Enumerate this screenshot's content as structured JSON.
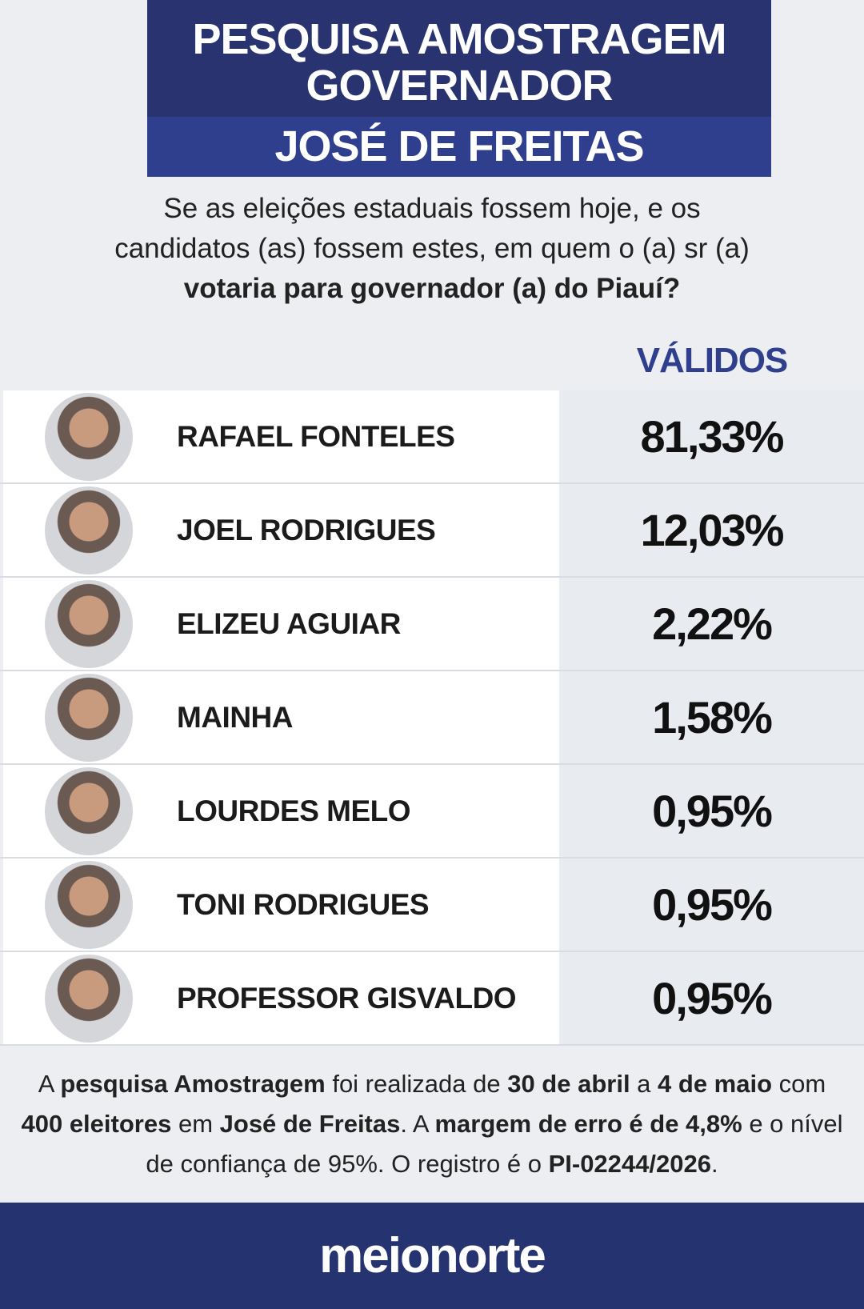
{
  "header": {
    "title_lines": [
      "PESQUISA AMOSTRAGEM",
      "GOVERNADOR"
    ],
    "subtitle": "JOSÉ DE FREITAS"
  },
  "question": [
    {
      "text": "Se as eleições estaduais fossem hoje, e os candidatos (as) fossem estes, em quem o (a) sr (a) ",
      "bold": false
    },
    {
      "text": "votaria para governador (a) do Piauí?",
      "bold": true
    }
  ],
  "table": {
    "value_header": "VÁLIDOS",
    "rows": [
      {
        "name": "RAFAEL FONTELES",
        "value": "81,33%"
      },
      {
        "name": "JOEL RODRIGUES",
        "value": "12,03%"
      },
      {
        "name": "ELIZEU AGUIAR",
        "value": "2,22%"
      },
      {
        "name": "MAINHA",
        "value": "1,58%"
      },
      {
        "name": "LOURDES MELO",
        "value": "0,95%"
      },
      {
        "name": "TONI RODRIGUES",
        "value": "0,95%"
      },
      {
        "name": "PROFESSOR GISVALDO",
        "value": "0,95%"
      }
    ]
  },
  "note": [
    {
      "text": "A ",
      "bold": false
    },
    {
      "text": "pesquisa Amostragem",
      "bold": true
    },
    {
      "text": " foi realizada de ",
      "bold": false
    },
    {
      "text": "30 de abril",
      "bold": true
    },
    {
      "text": " a ",
      "bold": false
    },
    {
      "text": "4 de maio",
      "bold": true
    },
    {
      "text": " com ",
      "bold": false
    },
    {
      "text": "400 eleitores",
      "bold": true
    },
    {
      "text": " em ",
      "bold": false
    },
    {
      "text": "José de Freitas",
      "bold": true
    },
    {
      "text": ". A ",
      "bold": false
    },
    {
      "text": "margem de erro é de 4,8%",
      "bold": true
    },
    {
      "text": " e o nível de confiança de 95%. O registro é o ",
      "bold": false
    },
    {
      "text": "PI-02244/2026",
      "bold": true
    },
    {
      "text": ".",
      "bold": false
    }
  ],
  "footer": {
    "brand": "meionorte"
  }
}
